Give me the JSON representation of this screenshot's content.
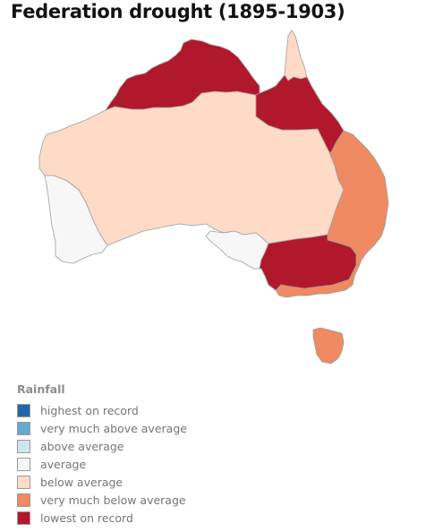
{
  "title": "Federation drought (1895-1903)",
  "colors": {
    "highest": "#2166ac",
    "very_much_above": "#67a9cf",
    "above": "#d1e5f0",
    "average": "#f7f7f7",
    "below": "#fddbc7",
    "very_much_below": "#ef8a62",
    "lowest": "#b2182b",
    "border": "#9e9e9e"
  },
  "legend": {
    "title": "Rainfall",
    "items": [
      {
        "label": "highest on record",
        "color": "#2166ac"
      },
      {
        "label": "very much above average",
        "color": "#67a9cf"
      },
      {
        "label": "above average",
        "color": "#d1e5f0"
      },
      {
        "label": "average",
        "color": "#f7f7f7"
      },
      {
        "label": "below average",
        "color": "#fddbc7"
      },
      {
        "label": "very much below average",
        "color": "#ef8a62"
      },
      {
        "label": "lowest on record",
        "color": "#b2182b"
      }
    ]
  },
  "regions": [
    {
      "id": "western-australia-southwest",
      "category": "average"
    },
    {
      "id": "inland-australia",
      "category": "below average"
    },
    {
      "id": "cape-york",
      "category": "below average"
    },
    {
      "id": "kimberley-top-end",
      "category": "lowest on record"
    },
    {
      "id": "gulf-country-north-queensland",
      "category": "lowest on record"
    },
    {
      "id": "east-coast-queensland-nsw",
      "category": "very much below average"
    },
    {
      "id": "murray-darling-south-east",
      "category": "lowest on record"
    },
    {
      "id": "victoria-south",
      "category": "very much below average"
    },
    {
      "id": "south-australia-gulfs",
      "category": "average"
    },
    {
      "id": "tasmania",
      "category": "very much below average"
    }
  ]
}
